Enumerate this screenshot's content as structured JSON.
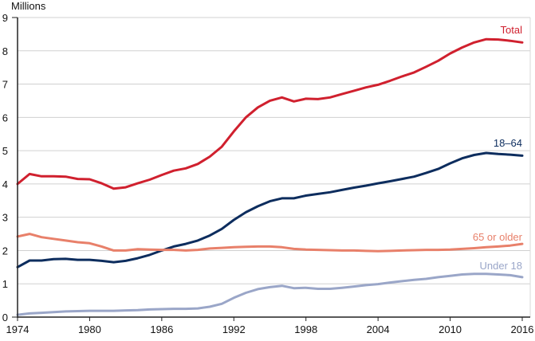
{
  "chart_data": {
    "type": "line",
    "title": "",
    "ylabel": "Millions",
    "xlabel": "",
    "xlim": [
      1974,
      2016
    ],
    "ylim": [
      0,
      9
    ],
    "x_ticks": [
      1974,
      1980,
      1986,
      1992,
      1998,
      2004,
      2010,
      2016
    ],
    "y_ticks": [
      0,
      1,
      2,
      3,
      4,
      5,
      6,
      7,
      8,
      9
    ],
    "grid": true,
    "x": [
      1974,
      1975,
      1976,
      1977,
      1978,
      1979,
      1980,
      1981,
      1982,
      1983,
      1984,
      1985,
      1986,
      1987,
      1988,
      1989,
      1990,
      1991,
      1992,
      1993,
      1994,
      1995,
      1996,
      1997,
      1998,
      1999,
      2000,
      2001,
      2002,
      2003,
      2004,
      2005,
      2006,
      2007,
      2008,
      2009,
      2010,
      2011,
      2012,
      2013,
      2014,
      2015,
      2016
    ],
    "series": [
      {
        "name": "Total",
        "color": "#d0202e",
        "values": [
          4.0,
          4.3,
          4.23,
          4.23,
          4.22,
          4.15,
          4.14,
          4.02,
          3.86,
          3.9,
          4.02,
          4.13,
          4.27,
          4.4,
          4.47,
          4.6,
          4.82,
          5.12,
          5.58,
          6.0,
          6.3,
          6.5,
          6.6,
          6.48,
          6.56,
          6.55,
          6.6,
          6.7,
          6.8,
          6.9,
          6.98,
          7.1,
          7.23,
          7.35,
          7.52,
          7.7,
          7.92,
          8.1,
          8.25,
          8.35,
          8.34,
          8.3,
          8.25
        ]
      },
      {
        "name": "18–64",
        "color": "#0d2d5e",
        "values": [
          1.5,
          1.7,
          1.7,
          1.74,
          1.75,
          1.72,
          1.72,
          1.69,
          1.65,
          1.69,
          1.77,
          1.87,
          2.0,
          2.12,
          2.2,
          2.3,
          2.45,
          2.65,
          2.92,
          3.15,
          3.33,
          3.48,
          3.57,
          3.57,
          3.65,
          3.7,
          3.75,
          3.82,
          3.89,
          3.95,
          4.02,
          4.08,
          4.15,
          4.22,
          4.33,
          4.45,
          4.62,
          4.77,
          4.87,
          4.93,
          4.9,
          4.88,
          4.85
        ]
      },
      {
        "name": "65 or older",
        "color": "#e8806a",
        "values": [
          2.42,
          2.5,
          2.4,
          2.35,
          2.3,
          2.25,
          2.22,
          2.12,
          2.0,
          2.0,
          2.04,
          2.03,
          2.02,
          2.02,
          2.0,
          2.02,
          2.06,
          2.08,
          2.1,
          2.11,
          2.12,
          2.12,
          2.1,
          2.05,
          2.03,
          2.02,
          2.01,
          2.0,
          2.0,
          1.99,
          1.98,
          1.99,
          2.0,
          2.01,
          2.02,
          2.02,
          2.03,
          2.05,
          2.07,
          2.1,
          2.12,
          2.15,
          2.2
        ]
      },
      {
        "name": "Under 18",
        "color": "#9aa6c8",
        "values": [
          0.07,
          0.11,
          0.13,
          0.15,
          0.17,
          0.18,
          0.19,
          0.19,
          0.19,
          0.2,
          0.21,
          0.23,
          0.24,
          0.25,
          0.25,
          0.26,
          0.31,
          0.4,
          0.58,
          0.73,
          0.84,
          0.9,
          0.94,
          0.87,
          0.88,
          0.85,
          0.85,
          0.88,
          0.92,
          0.96,
          0.99,
          1.04,
          1.08,
          1.12,
          1.15,
          1.2,
          1.24,
          1.28,
          1.3,
          1.3,
          1.28,
          1.26,
          1.2
        ]
      }
    ]
  }
}
